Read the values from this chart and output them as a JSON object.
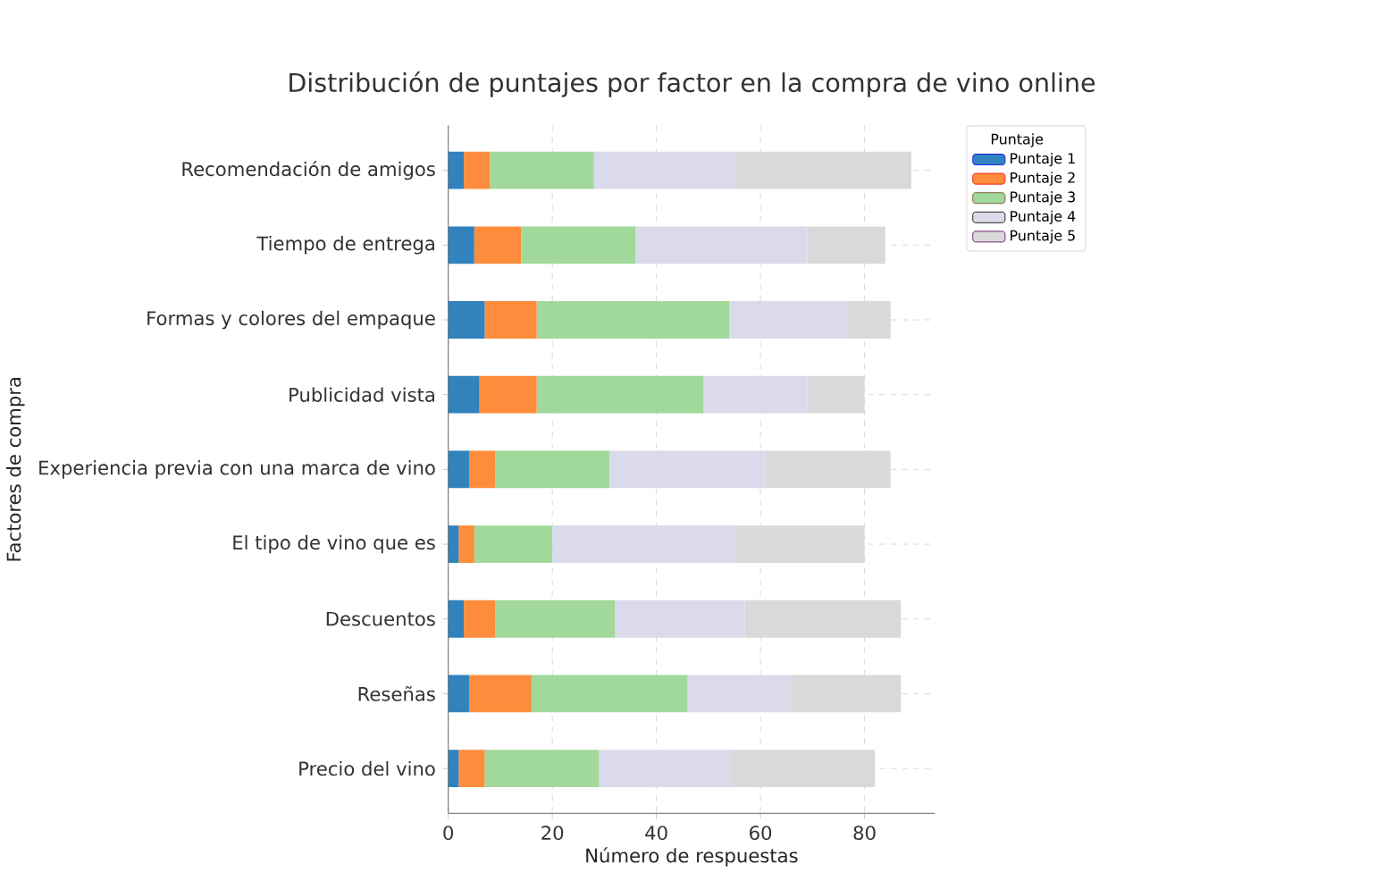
{
  "chart_data": {
    "type": "bar",
    "orientation": "horizontal",
    "stacked": true,
    "title": "Distribución de puntajes por factor en la compra de vino online",
    "xlabel": "Número de respuestas",
    "ylabel": "Factores de compra",
    "legend_title": "Puntaje",
    "legend": "top right",
    "grid": true,
    "categories": [
      "Recomendación de amigos",
      "Tiempo de entrega",
      "Formas y colores del empaque",
      "Publicidad vista",
      "Experiencia previa con una marca de vino",
      "El tipo de vino que es",
      "Descuentos",
      "Reseñas",
      "Precio del vino"
    ],
    "xlim": [
      0,
      93.5
    ],
    "xticks": [
      0,
      20,
      40,
      60,
      80
    ],
    "series": [
      {
        "name": "Puntaje 1",
        "color": "#3182bd",
        "values": [
          3,
          5,
          7,
          6,
          4,
          2,
          3,
          4,
          2
        ]
      },
      {
        "name": "Puntaje 2",
        "color": "#fd8d3c",
        "values": [
          5,
          9,
          10,
          11,
          5,
          3,
          6,
          12,
          5
        ]
      },
      {
        "name": "Puntaje 3",
        "color": "#a1d99b",
        "values": [
          20,
          22,
          37,
          32,
          22,
          15,
          23,
          30,
          22
        ]
      },
      {
        "name": "Puntaje 4",
        "color": "#dadaeb",
        "values": [
          27,
          33,
          23,
          20,
          30,
          35,
          25,
          20,
          25
        ]
      },
      {
        "name": "Puntaje 5",
        "color": "#d9d9d9",
        "values": [
          34,
          15,
          8,
          11,
          24,
          25,
          30,
          21,
          28
        ]
      }
    ]
  }
}
